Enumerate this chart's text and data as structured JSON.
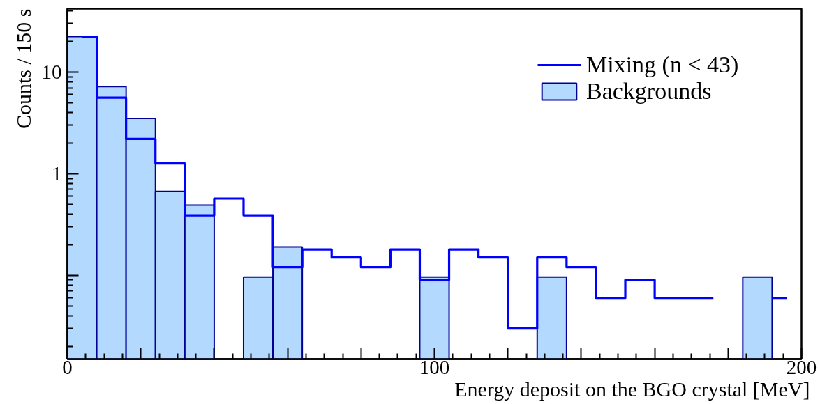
{
  "chart_data": {
    "type": "histogram",
    "xlabel": "Energy deposit on the BGO crystal [MeV]",
    "ylabel": "Counts / 150 s",
    "bins": [
      0,
      8,
      16,
      24,
      32,
      40,
      48,
      56,
      64,
      72,
      80,
      88,
      96,
      104,
      112,
      120,
      128,
      136,
      144,
      152,
      160,
      168,
      176,
      184,
      192,
      200
    ],
    "series": [
      {
        "name": "Mixing (n < 43)",
        "type": "step",
        "color": "#0000ff",
        "x": [
          4,
          12,
          20,
          28,
          36,
          44,
          52,
          60,
          68,
          76,
          84,
          92,
          100,
          108,
          116,
          124,
          132,
          140,
          148,
          156,
          164,
          172,
          180,
          188,
          196
        ],
        "values": [
          22.3,
          5.6,
          2.2,
          1.26,
          0.39,
          0.57,
          0.39,
          0.12,
          0.18,
          0.15,
          0.12,
          0.18,
          0.09,
          0.18,
          0.15,
          0.03,
          0.15,
          0.12,
          0.06,
          0.09,
          0.06,
          0.06,
          null,
          null,
          0.06
        ]
      },
      {
        "name": "Backgrounds",
        "color": "#b3d9ff",
        "values": [
          22.3,
          7.2,
          3.5,
          0.67,
          0.49,
          null,
          0.096,
          0.19,
          null,
          null,
          null,
          null,
          0.096,
          null,
          null,
          null,
          0.096,
          null,
          null,
          null,
          null,
          null,
          null,
          0.096,
          null
        ]
      }
    ],
    "xlim": [
      0,
      200
    ],
    "ylim": [
      0.015,
      42
    ],
    "xticks": [
      0,
      {
        "value": 20,
        "label": null
      },
      {
        "value": 40,
        "label": null
      },
      {
        "value": 60,
        "label": null
      },
      {
        "value": 80,
        "label": null
      },
      100,
      {
        "value": 120,
        "label": null
      },
      {
        "value": 140,
        "label": null
      },
      {
        "value": 160,
        "label": null
      },
      {
        "value": 180,
        "label": null
      },
      200
    ],
    "yticks": [
      {
        "value": 0.1,
        "label": null
      },
      1,
      10
    ],
    "log": "y",
    "legend": "top right"
  }
}
